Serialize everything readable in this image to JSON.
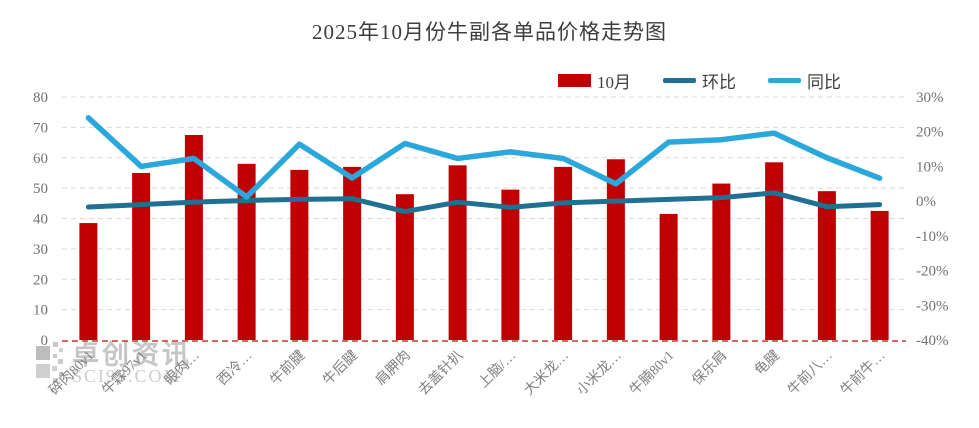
{
  "title": "2025年10月份牛副各单品价格走势图",
  "legend": [
    {
      "label": "10月",
      "type": "bar",
      "color": "#c00000"
    },
    {
      "label": "环比",
      "type": "line",
      "color": "#1f7091"
    },
    {
      "label": "同比",
      "type": "line",
      "color": "#2aa8dc"
    }
  ],
  "watermark": {
    "brand": "卓创资讯",
    "site": "SCI99.COM"
  },
  "colors": {
    "bar": "#c00000",
    "huanbi_line": "#1f7091",
    "tongbi_line": "#2aa8dc",
    "gridline": "#d9d9d9",
    "baseline_dashed": "#cc3333",
    "axis_text": "#737373",
    "x_label_text": "#7f7f7f",
    "title_text": "#3d3d3d"
  },
  "chart_data": {
    "type": "bar",
    "subtype": "combo bar + 2 lines, dual axis",
    "title": "2025年10月份牛副各单品价格走势图",
    "xlabel": "",
    "ylabel_left": "",
    "ylabel_right": "%",
    "grid": "horizontal dashed",
    "legend_position": "top-right",
    "categories": [
      "碎肉80v1",
      "牛霖97v1",
      "眼肉…",
      "西冷…",
      "牛前腱",
      "牛后腱",
      "肩胛肉",
      "去盖针扒",
      "上脑/…",
      "大米龙…",
      "小米龙…",
      "牛腩80v1",
      "保乐肩",
      "龟腱",
      "牛前八…",
      "牛前牛…"
    ],
    "series": [
      {
        "name": "10月",
        "type": "bar",
        "axis": "left",
        "color": "#c00000",
        "values": [
          38.5,
          55,
          67.5,
          58,
          56,
          57,
          48,
          57.5,
          49.5,
          57,
          59.5,
          41.5,
          51.5,
          58.5,
          49,
          42.5
        ]
      },
      {
        "name": "环比",
        "type": "line",
        "axis": "right",
        "unit": "%",
        "color": "#1f7091",
        "values": [
          -1.7,
          -1.0,
          -0.3,
          0.2,
          0.5,
          0.7,
          -3.0,
          -0.3,
          -1.8,
          -0.5,
          0.0,
          0.5,
          1.0,
          2.4,
          -1.6,
          -1.0
        ]
      },
      {
        "name": "同比",
        "type": "line",
        "axis": "right",
        "unit": "%",
        "color": "#2aa8dc",
        "values": [
          24,
          10,
          12.3,
          1.2,
          16.4,
          6.7,
          16.6,
          12.3,
          14.2,
          12.3,
          5,
          17,
          17.7,
          19.6,
          12.5,
          6.6
        ]
      }
    ],
    "left_axis": {
      "range": [
        0,
        80
      ],
      "ticks": [
        80,
        70,
        60,
        50,
        40,
        30,
        20,
        10,
        0
      ]
    },
    "right_axis": {
      "range": [
        -40,
        30
      ],
      "ticks": [
        "30%",
        "20%",
        "10%",
        "0%",
        "-10%",
        "-20%",
        "-30%",
        "-40%"
      ]
    }
  }
}
